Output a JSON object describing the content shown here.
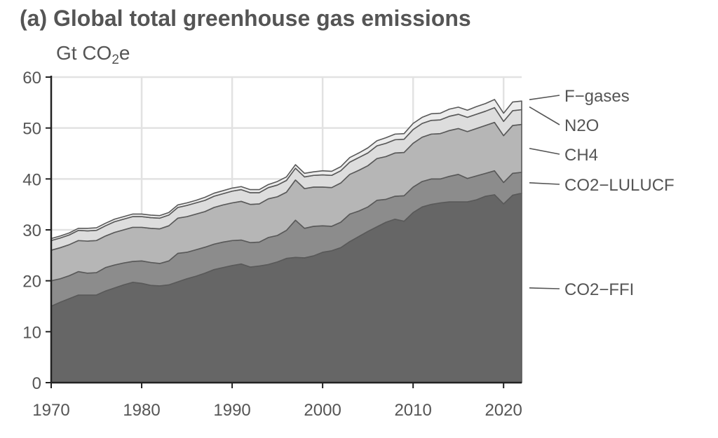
{
  "title": "(a) Global total greenhouse gas emissions",
  "unit": {
    "main": "Gt CO",
    "sub": "2",
    "suffix": "e"
  },
  "colors": {
    "grid": "#e2e2e2",
    "axis": "#222222",
    "text": "#555555",
    "series_fill": [
      "#666666",
      "#8c8c8c",
      "#b6b6b6",
      "#dddddd",
      "#ececec"
    ],
    "series_stroke": "#595959"
  },
  "chart_data": {
    "type": "area",
    "stacked": true,
    "xlabel": "",
    "ylabel": "Gt CO2e",
    "xlim": [
      1970,
      2022
    ],
    "ylim": [
      0,
      60
    ],
    "xticks": [
      1970,
      1980,
      1990,
      2000,
      2010,
      2020
    ],
    "yticks": [
      0,
      10,
      20,
      30,
      40,
      50,
      60
    ],
    "grid": true,
    "legend": "right, labels next to series ends",
    "x": [
      1970,
      1971,
      1972,
      1973,
      1974,
      1975,
      1976,
      1977,
      1978,
      1979,
      1980,
      1981,
      1982,
      1983,
      1984,
      1985,
      1986,
      1987,
      1988,
      1989,
      1990,
      1991,
      1992,
      1993,
      1994,
      1995,
      1996,
      1997,
      1998,
      1999,
      2000,
      2001,
      2002,
      2003,
      2004,
      2005,
      2006,
      2007,
      2008,
      2009,
      2010,
      2011,
      2012,
      2013,
      2014,
      2015,
      2016,
      2017,
      2018,
      2019,
      2020,
      2021,
      2022
    ],
    "series": [
      {
        "name": "CO2−FFI",
        "values": [
          15.0,
          15.8,
          16.5,
          17.2,
          17.2,
          17.2,
          18.0,
          18.6,
          19.2,
          19.7,
          19.5,
          19.1,
          19.0,
          19.2,
          19.8,
          20.4,
          20.9,
          21.5,
          22.2,
          22.6,
          23.0,
          23.3,
          22.7,
          22.9,
          23.2,
          23.7,
          24.4,
          24.6,
          24.5,
          24.9,
          25.6,
          25.9,
          26.5,
          27.7,
          28.7,
          29.7,
          30.6,
          31.5,
          32.1,
          31.7,
          33.4,
          34.5,
          35.0,
          35.3,
          35.5,
          35.5,
          35.5,
          35.9,
          36.6,
          36.9,
          35.1,
          36.8,
          37.2
        ]
      },
      {
        "name": "CO2−LULUCF",
        "values": [
          5.0,
          4.6,
          4.5,
          4.6,
          4.3,
          4.4,
          4.6,
          4.5,
          4.3,
          4.1,
          4.4,
          4.5,
          4.4,
          4.7,
          5.6,
          5.2,
          5.2,
          5.1,
          5.0,
          5.0,
          4.9,
          4.7,
          4.8,
          4.7,
          5.3,
          5.2,
          5.5,
          7.3,
          5.8,
          5.8,
          5.2,
          4.8,
          5.0,
          5.4,
          5.0,
          4.8,
          5.2,
          4.5,
          4.5,
          5.0,
          5.0,
          5.0,
          5.0,
          4.7,
          5.0,
          5.4,
          4.6,
          4.7,
          4.5,
          4.7,
          4.2,
          4.3,
          4.1
        ]
      },
      {
        "name": "CH4",
        "values": [
          6.0,
          6.1,
          6.1,
          6.1,
          6.3,
          6.3,
          6.2,
          6.4,
          6.5,
          6.7,
          6.6,
          6.7,
          6.8,
          6.9,
          6.9,
          7.0,
          7.0,
          7.0,
          7.2,
          7.3,
          7.4,
          7.6,
          7.5,
          7.5,
          7.6,
          7.6,
          7.5,
          7.9,
          7.8,
          7.7,
          7.6,
          7.6,
          7.7,
          7.8,
          8.0,
          8.1,
          8.2,
          8.4,
          8.5,
          8.5,
          8.6,
          8.7,
          8.8,
          8.9,
          9.0,
          9.0,
          9.2,
          9.3,
          9.4,
          9.5,
          9.2,
          9.4,
          9.4
        ]
      },
      {
        "name": "N2O",
        "values": [
          1.9,
          1.9,
          1.9,
          2.0,
          2.0,
          2.0,
          2.0,
          2.1,
          2.1,
          2.1,
          2.1,
          2.1,
          2.1,
          2.1,
          2.1,
          2.2,
          2.2,
          2.2,
          2.2,
          2.2,
          2.3,
          2.3,
          2.3,
          2.2,
          2.2,
          2.3,
          2.3,
          2.3,
          2.3,
          2.3,
          2.4,
          2.4,
          2.4,
          2.4,
          2.5,
          2.5,
          2.5,
          2.6,
          2.6,
          2.6,
          2.7,
          2.7,
          2.7,
          2.7,
          2.8,
          2.8,
          2.8,
          2.8,
          2.8,
          2.9,
          2.8,
          2.9,
          2.9
        ]
      },
      {
        "name": "F−gases",
        "values": [
          0.4,
          0.4,
          0.4,
          0.4,
          0.5,
          0.5,
          0.5,
          0.5,
          0.5,
          0.5,
          0.5,
          0.5,
          0.5,
          0.5,
          0.5,
          0.5,
          0.5,
          0.6,
          0.6,
          0.6,
          0.6,
          0.6,
          0.6,
          0.6,
          0.6,
          0.7,
          0.7,
          0.7,
          0.7,
          0.7,
          0.8,
          0.8,
          0.8,
          0.9,
          0.9,
          1.0,
          1.0,
          1.1,
          1.1,
          1.1,
          1.2,
          1.2,
          1.3,
          1.3,
          1.4,
          1.4,
          1.4,
          1.5,
          1.5,
          1.6,
          1.6,
          1.7,
          1.7
        ]
      }
    ]
  }
}
